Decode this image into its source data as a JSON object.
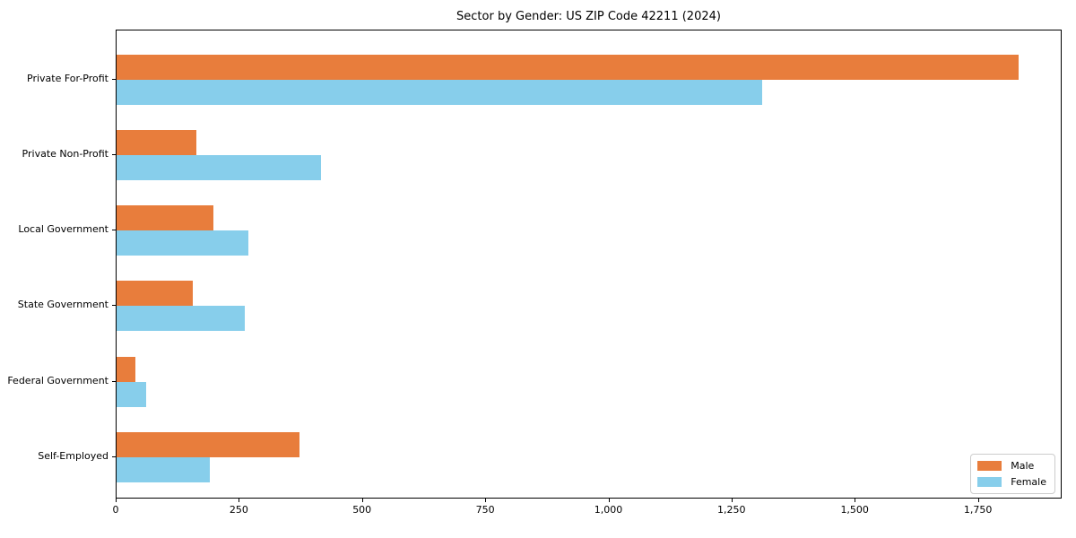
{
  "title": "Sector by Gender: US ZIP Code 42211 (2024)",
  "chart_data": {
    "type": "bar",
    "orientation": "horizontal",
    "title": "Sector by Gender: US ZIP Code 42211 (2024)",
    "xlabel": "",
    "ylabel": "",
    "categories": [
      "Private For-Profit",
      "Private Non-Profit",
      "Local Government",
      "State Government",
      "Federal Government",
      "Self-Employed"
    ],
    "series": [
      {
        "name": "Male",
        "color": "#e87d3c",
        "values": [
          1830,
          162,
          196,
          154,
          38,
          372
        ]
      },
      {
        "name": "Female",
        "color": "#87ceeb",
        "values": [
          1310,
          415,
          268,
          260,
          60,
          190
        ]
      }
    ],
    "xlim": [
      0,
      1920
    ],
    "x_ticks": [
      0,
      250,
      500,
      750,
      1000,
      1250,
      1500,
      1750
    ],
    "x_tick_labels": [
      "0",
      "250",
      "500",
      "750",
      "1,000",
      "1,250",
      "1,500",
      "1,750"
    ],
    "grid": false,
    "legend_position": "lower right"
  },
  "colors": {
    "male": "#e87d3c",
    "female": "#87ceeb",
    "spine": "#000000",
    "legend_border": "#cccccc",
    "background": "#ffffff"
  }
}
